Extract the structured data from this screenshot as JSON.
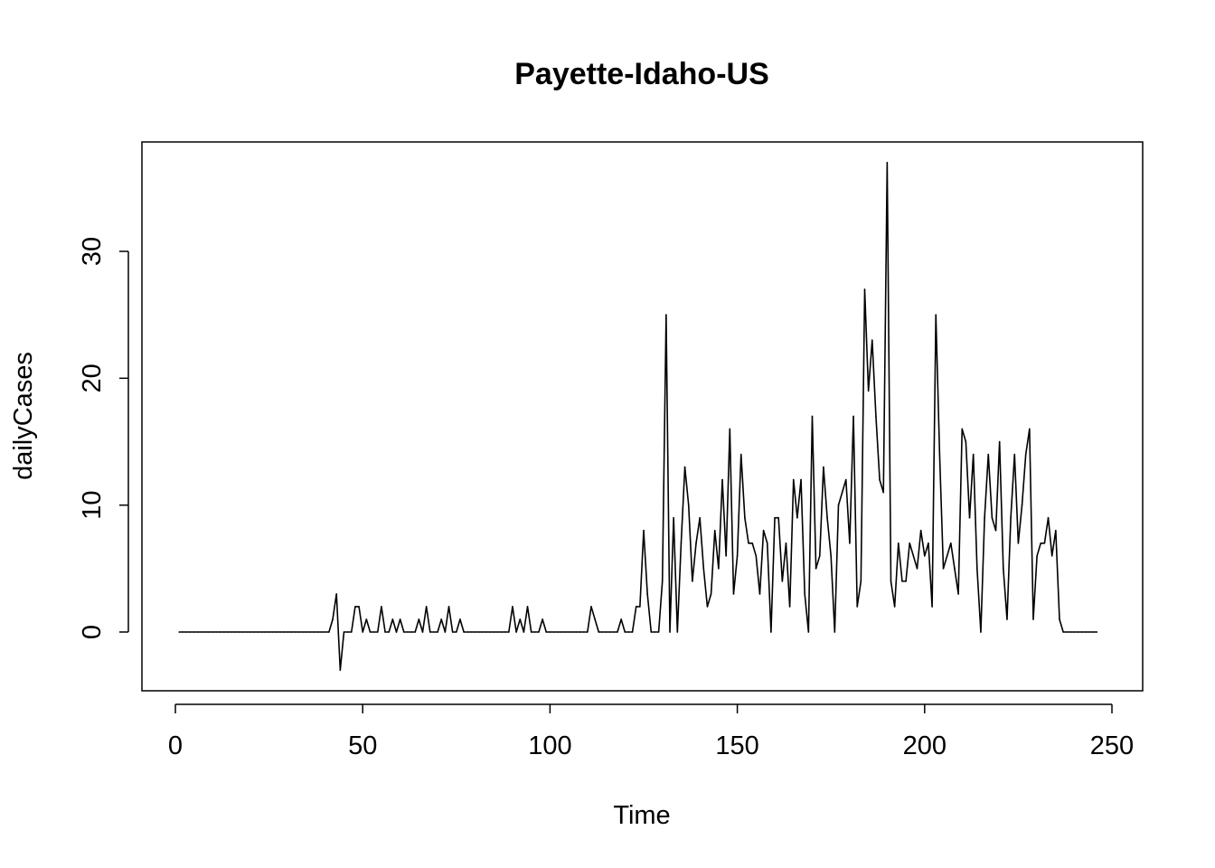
{
  "chart_data": {
    "type": "line",
    "title": "Payette-Idaho-US",
    "xlabel": "Time",
    "ylabel": "dailyCases",
    "xlim": [
      0,
      250
    ],
    "ylim": [
      -4,
      37
    ],
    "x_ticks": [
      "0",
      "50",
      "100",
      "150",
      "200",
      "250"
    ],
    "y_ticks": [
      "0",
      "10",
      "20",
      "30"
    ],
    "grid": false,
    "line_color": "#000000",
    "series": [
      {
        "x_start": 1,
        "values": [
          0,
          0,
          0,
          0,
          0,
          0,
          0,
          0,
          0,
          0,
          0,
          0,
          0,
          0,
          0,
          0,
          0,
          0,
          0,
          0,
          0,
          0,
          0,
          0,
          0,
          0,
          0,
          0,
          0,
          0,
          0,
          0,
          0,
          0,
          0,
          0,
          0,
          0,
          0,
          0,
          0,
          1,
          3,
          -3,
          0,
          0,
          0,
          2,
          2,
          0,
          1,
          0,
          0,
          0,
          2,
          0,
          0,
          1,
          0,
          1,
          0,
          0,
          0,
          0,
          1,
          0,
          2,
          0,
          0,
          0,
          1,
          0,
          2,
          0,
          0,
          1,
          0,
          0,
          0,
          0,
          0,
          0,
          0,
          0,
          0,
          0,
          0,
          0,
          0,
          2,
          0,
          1,
          0,
          2,
          0,
          0,
          0,
          1,
          0,
          0,
          0,
          0,
          0,
          0,
          0,
          0,
          0,
          0,
          0,
          0,
          2,
          1,
          0,
          0,
          0,
          0,
          0,
          0,
          1,
          0,
          0,
          0,
          2,
          2,
          8,
          3,
          0,
          0,
          0,
          4,
          25,
          0,
          9,
          0,
          7,
          13,
          10,
          4,
          7,
          9,
          5,
          2,
          3,
          8,
          5,
          12,
          6,
          16,
          3,
          6,
          14,
          9,
          7,
          7,
          6,
          3,
          8,
          7,
          0,
          9,
          9,
          4,
          7,
          2,
          12,
          9,
          12,
          3,
          0,
          17,
          5,
          6,
          13,
          9,
          6,
          0,
          10,
          11,
          12,
          7,
          17,
          2,
          4,
          27,
          19,
          23,
          17,
          12,
          11,
          37,
          4,
          2,
          7,
          4,
          4,
          7,
          6,
          5,
          8,
          6,
          7,
          2,
          25,
          14,
          5,
          6,
          7,
          5,
          3,
          16,
          15,
          9,
          14,
          5,
          0,
          9,
          14,
          9,
          8,
          15,
          5,
          1,
          9,
          14,
          7,
          10,
          14,
          16,
          1,
          6,
          7,
          7,
          9,
          6,
          8,
          1,
          0,
          0,
          0,
          0,
          0,
          0,
          0,
          0,
          0,
          0
        ]
      }
    ]
  }
}
